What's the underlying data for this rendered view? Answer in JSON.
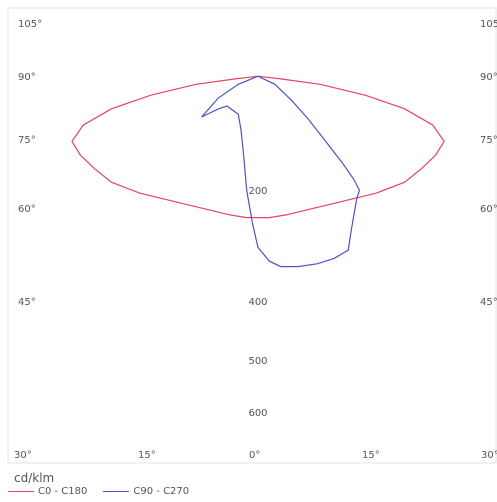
{
  "chart_data": {
    "type": "line",
    "title": "",
    "unit_label": "cd/klm",
    "angle_labels_left": [
      "105°",
      "90°",
      "75°",
      "60°",
      "45°"
    ],
    "angle_labels_right": [
      "105°",
      "90°",
      "75°",
      "60°",
      "45°"
    ],
    "angle_labels_bottom": [
      "30°",
      "15°",
      "0°",
      "15°",
      "30°"
    ],
    "radial_labels": [
      "200",
      "400",
      "500",
      "600"
    ],
    "series": [
      {
        "name": "C0 - C180",
        "color": "#e8435f",
        "points": [
          [
            -0.66,
            0.48
          ],
          [
            -0.62,
            0.54
          ],
          [
            -0.52,
            0.6
          ],
          [
            -0.38,
            0.65
          ],
          [
            -0.22,
            0.69
          ],
          [
            -0.08,
            0.71
          ],
          [
            0.0,
            0.72
          ],
          [
            0.08,
            0.71
          ],
          [
            0.22,
            0.69
          ],
          [
            0.38,
            0.65
          ],
          [
            0.52,
            0.6
          ],
          [
            0.62,
            0.54
          ],
          [
            0.66,
            0.48
          ],
          [
            0.63,
            0.43
          ],
          [
            0.58,
            0.38
          ],
          [
            0.52,
            0.33
          ],
          [
            0.42,
            0.29
          ],
          [
            0.3,
            0.26
          ],
          [
            0.18,
            0.23
          ],
          [
            0.1,
            0.21
          ],
          [
            0.04,
            0.2
          ],
          [
            -0.04,
            0.2
          ],
          [
            -0.1,
            0.21
          ],
          [
            -0.18,
            0.23
          ],
          [
            -0.3,
            0.26
          ],
          [
            -0.42,
            0.29
          ],
          [
            -0.52,
            0.33
          ],
          [
            -0.58,
            0.38
          ],
          [
            -0.63,
            0.43
          ],
          [
            -0.66,
            0.48
          ]
        ]
      },
      {
        "name": "C90 - C270",
        "color": "#4b55c6",
        "points": [
          [
            0.0,
            0.72
          ],
          [
            0.06,
            0.69
          ],
          [
            0.12,
            0.63
          ],
          [
            0.18,
            0.56
          ],
          [
            0.24,
            0.48
          ],
          [
            0.3,
            0.4
          ],
          [
            0.34,
            0.34
          ],
          [
            0.36,
            0.3
          ],
          [
            0.35,
            0.27
          ],
          [
            0.34,
            0.21
          ],
          [
            0.33,
            0.15
          ],
          [
            0.32,
            0.08
          ],
          [
            0.27,
            0.05
          ],
          [
            0.21,
            0.03
          ],
          [
            0.14,
            0.02
          ],
          [
            0.08,
            0.02
          ],
          [
            0.04,
            0.04
          ],
          [
            0.0,
            0.09
          ],
          [
            -0.02,
            0.18
          ],
          [
            -0.04,
            0.3
          ],
          [
            -0.05,
            0.42
          ],
          [
            -0.06,
            0.52
          ],
          [
            -0.07,
            0.58
          ],
          [
            -0.11,
            0.61
          ],
          [
            -0.14,
            0.6
          ],
          [
            -0.2,
            0.57
          ],
          [
            -0.14,
            0.64
          ],
          [
            -0.07,
            0.69
          ],
          [
            0.0,
            0.72
          ]
        ]
      }
    ]
  }
}
